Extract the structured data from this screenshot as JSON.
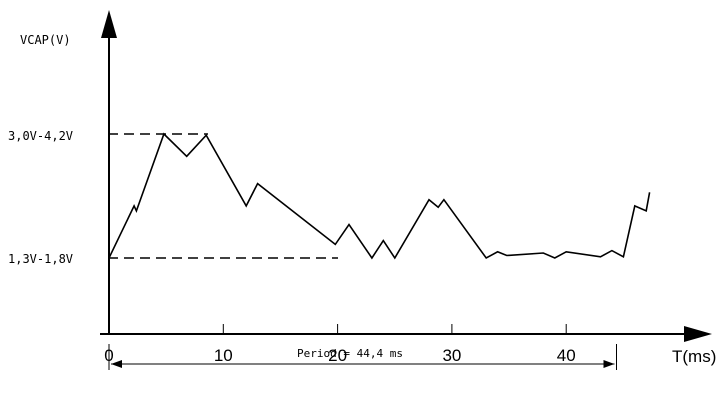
{
  "chart_data": {
    "type": "line",
    "ylabel": "VCAP(V)",
    "xlabel": "T(ms)",
    "x_ticks": [
      "0",
      "10",
      "20",
      "30",
      "40"
    ],
    "xlim": [
      0,
      48
    ],
    "y_levels": [
      {
        "label": "3,0V-4,2V",
        "level": "high"
      },
      {
        "label": "1,3V-1,8V",
        "level": "low"
      }
    ],
    "series": [
      {
        "x": [
          0,
          2.2,
          2.4,
          4.8,
          6.8,
          8.5,
          12.0,
          13.0,
          19.8,
          21.0,
          23.0,
          24.0,
          25.0,
          28.0,
          28.8,
          29.3,
          33.0,
          34.0,
          34.8,
          38.0,
          39.0,
          40.0,
          43.0,
          44.0,
          45.0,
          46.0,
          47.0,
          47.3
        ],
        "y": [
          0.0,
          0.42,
          0.38,
          1.0,
          0.82,
          0.99,
          0.42,
          0.6,
          0.11,
          0.27,
          0.0,
          0.14,
          0.0,
          0.47,
          0.41,
          0.47,
          0.0,
          0.05,
          0.02,
          0.04,
          0.0,
          0.05,
          0.01,
          0.06,
          0.01,
          0.42,
          0.38,
          0.53
        ]
      }
    ],
    "annotation": {
      "text": "Period = 44,4 ms",
      "x_start": 0,
      "x_end": 44.4
    }
  }
}
